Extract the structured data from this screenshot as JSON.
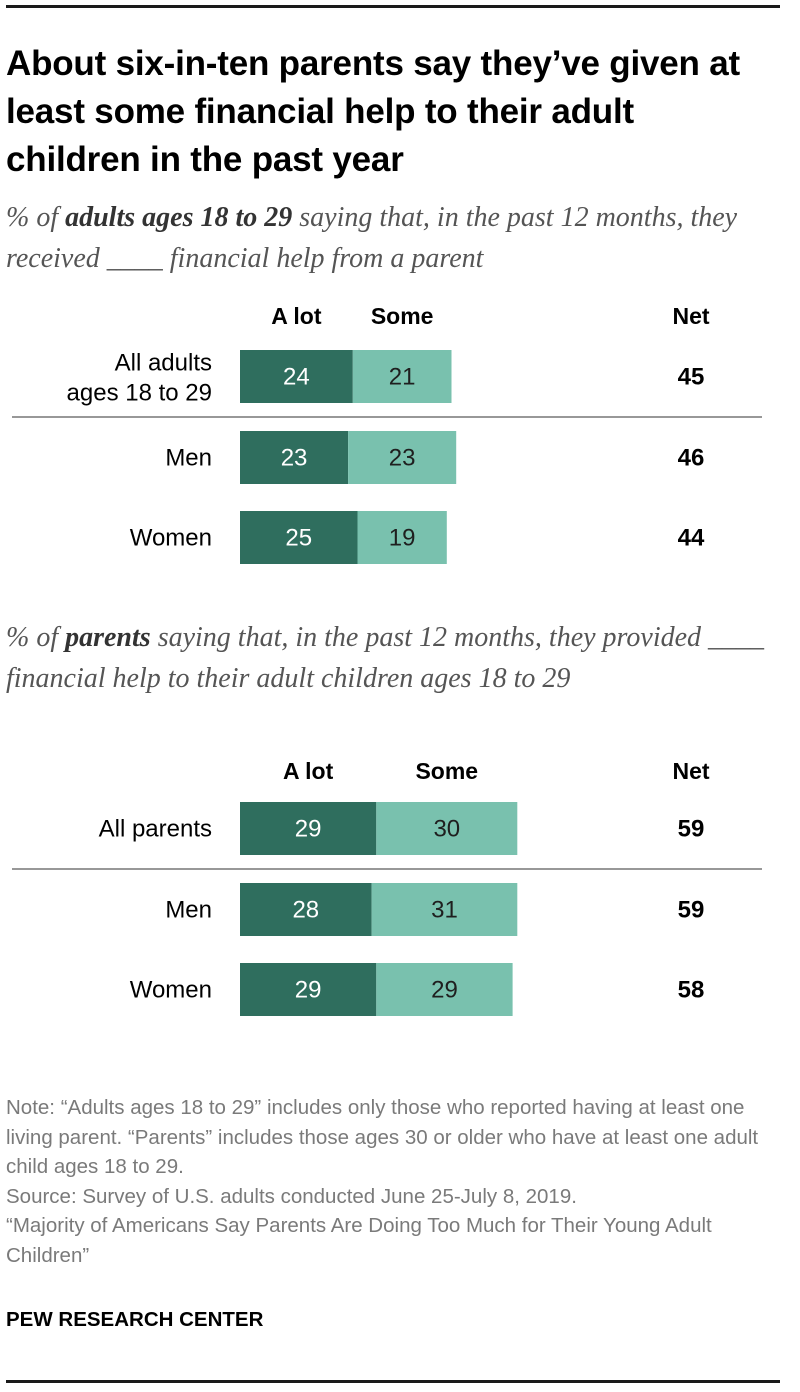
{
  "title": "About six-in-ten parents say they’ve given at least some financial help to their adult children in the past year",
  "colors": {
    "a_lot": "#2f6e5e",
    "some": "#79c1ae",
    "divider": "#777777",
    "rule": "#1a1a1a"
  },
  "chart_data": [
    {
      "type": "bar",
      "orientation": "horizontal",
      "stacked": true,
      "subtitle_pre": "% of ",
      "subtitle_bold": "adults ages 18 to 29",
      "subtitle_post": " saying that, in the past 12 months, they received ____ financial help from a parent",
      "series_labels": [
        "A lot",
        "Some"
      ],
      "net_label": "Net",
      "categories": [
        [
          "All adults",
          "ages 18 to 29"
        ],
        [
          "Men"
        ],
        [
          "Women"
        ]
      ],
      "series": [
        {
          "name": "A lot",
          "values": [
            24,
            23,
            25
          ]
        },
        {
          "name": "Some",
          "values": [
            21,
            23,
            19
          ]
        }
      ],
      "net": [
        45,
        46,
        44
      ],
      "divider_after": 0
    },
    {
      "type": "bar",
      "orientation": "horizontal",
      "stacked": true,
      "subtitle_pre": "% of ",
      "subtitle_bold": "parents",
      "subtitle_post": " saying that, in the past 12 months, they provided ____ financial help to their adult children ages 18 to 29",
      "series_labels": [
        "A lot",
        "Some"
      ],
      "net_label": "Net",
      "categories": [
        [
          "All parents"
        ],
        [
          "Men"
        ],
        [
          "Women"
        ]
      ],
      "series": [
        {
          "name": "A lot",
          "values": [
            29,
            28,
            29
          ]
        },
        {
          "name": "Some",
          "values": [
            30,
            31,
            29
          ]
        }
      ],
      "net": [
        59,
        59,
        58
      ],
      "divider_after": 0
    }
  ],
  "footer": {
    "note": "Note: “Adults ages 18 to 29” includes only those who reported having at least one living parent. “Parents” includes those ages 30 or older who have at least one adult child ages 18 to 29.",
    "source": "Source: Survey of U.S. adults conducted June 25-July 8, 2019.",
    "report": "“Majority of Americans Say Parents Are Doing Too Much for Their Young Adult Children”",
    "brand": "PEW RESEARCH CENTER"
  }
}
